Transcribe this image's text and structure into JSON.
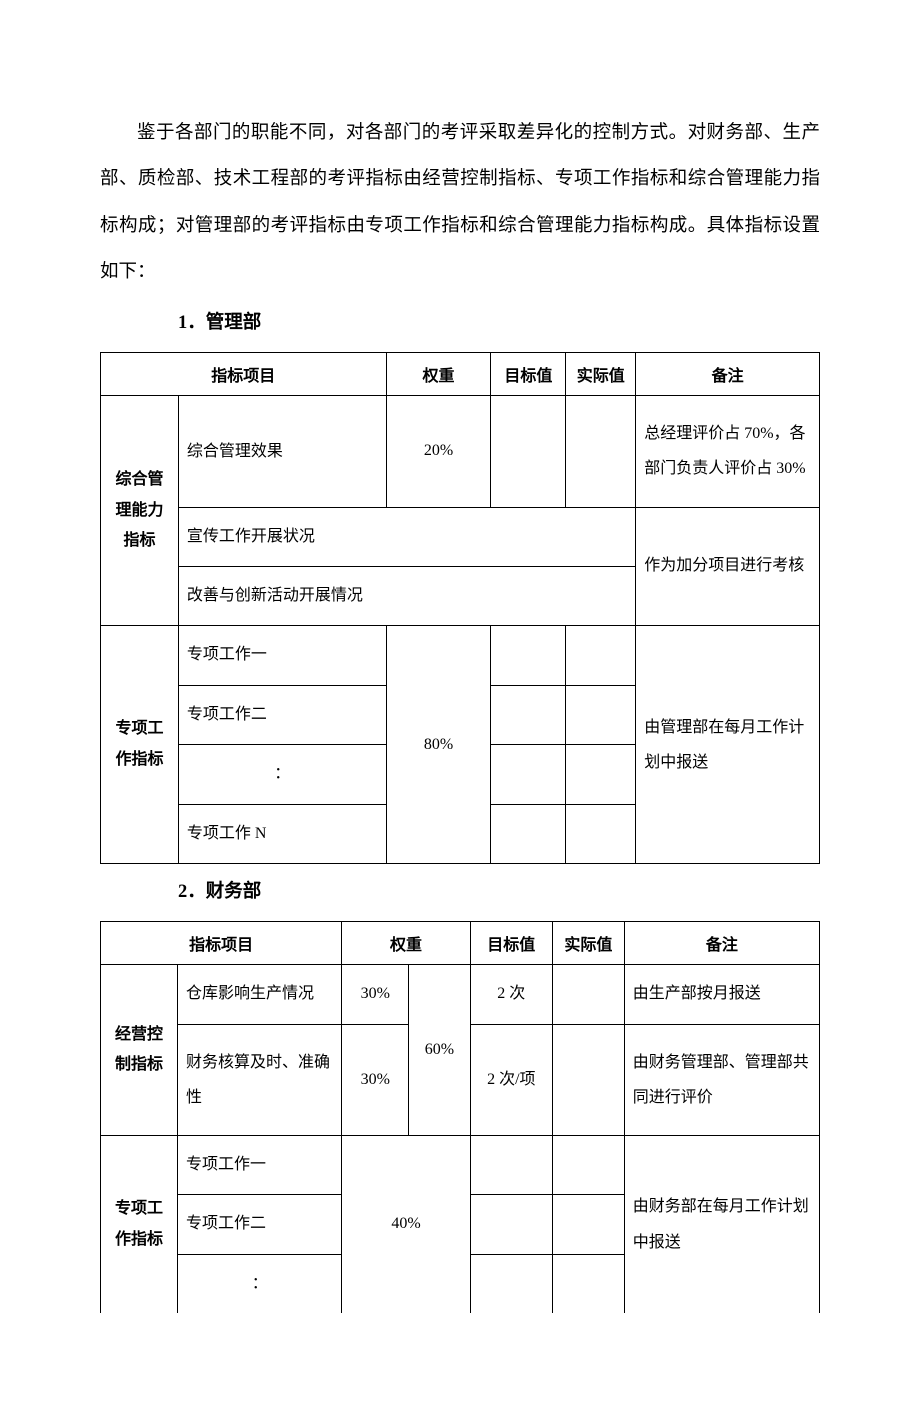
{
  "paragraph": "鉴于各部门的职能不同，对各部门的考评采取差异化的控制方式。对财务部、生产部、质检部、技术工程部的考评指标由经营控制指标、专项工作指标和综合管理能力指标构成；对管理部的考评指标由专项工作指标和综合管理能力指标构成。具体指标设置如下：",
  "section1": {
    "title": "1．管理部",
    "table": {
      "headers": {
        "project": "指标项目",
        "weight": "权重",
        "target": "目标值",
        "actual": "实际值",
        "remark": "备注"
      },
      "category1": "综合管理能力指标",
      "row1": {
        "item": "综合管理效果",
        "weight": "20%",
        "remark": "总经理评价占 70%，各部门负责人评价占 30%"
      },
      "row2": {
        "item": "宣传工作开展状况"
      },
      "row3": {
        "item": "改善与创新活动开展情况"
      },
      "row23remark": "作为加分项目进行考核",
      "category2": "专项工作指标",
      "row4": {
        "item": "专项工作一"
      },
      "row5": {
        "item": "专项工作二"
      },
      "row6": {
        "item": "："
      },
      "row7": {
        "item": "专项工作 N"
      },
      "weight2": "80%",
      "remark2": "由管理部在每月工作计划中报送"
    }
  },
  "section2": {
    "title": "2．财务部",
    "table": {
      "headers": {
        "project": "指标项目",
        "weight": "权重",
        "target": "目标值",
        "actual": "实际值",
        "remark": "备注"
      },
      "category1": "经营控制指标",
      "row1": {
        "item": "仓库影响生产情况",
        "weight1": "30%",
        "target": "2 次",
        "remark": "由生产部按月报送"
      },
      "row2": {
        "item": "财务核算及时、准确性",
        "weight1": "30%",
        "target": "2 次/项",
        "remark": "由财务管理部、管理部共同进行评价"
      },
      "weight2": "60%",
      "category2": "专项工作指标",
      "row3": {
        "item": "专项工作一"
      },
      "row4": {
        "item": "专项工作二"
      },
      "row5": {
        "item": "："
      },
      "weight3": "40%",
      "remark2": "由财务部在每月工作计划中报送"
    }
  },
  "styling": {
    "background_color": "#ffffff",
    "text_color": "#000000",
    "border_color": "#000000",
    "body_fontsize": 18.5,
    "table_fontsize": 16,
    "line_height_body": 2.5,
    "font_family": "SimSun"
  }
}
